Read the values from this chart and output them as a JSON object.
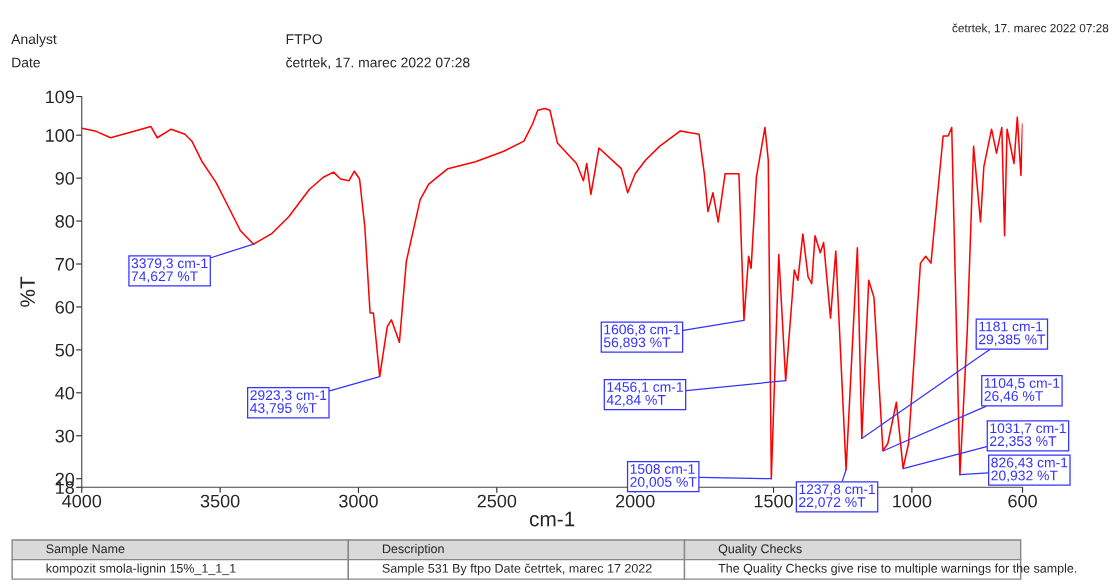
{
  "chart_data": {
    "type": "line",
    "xlabel": "cm-1",
    "ylabel": "%T",
    "xlim": [
      4000,
      600
    ],
    "xticks": [
      4000,
      3500,
      3000,
      2500,
      2000,
      1500,
      1000,
      600
    ],
    "ylim": [
      18,
      109
    ],
    "yticks": [
      18,
      20,
      30,
      40,
      50,
      60,
      70,
      80,
      90,
      100,
      109
    ],
    "grid": false,
    "legend": false,
    "marker": "none",
    "line_style": "solid",
    "series": [
      {
        "color": "#ff0000",
        "x": [
          4000,
          3952,
          3896,
          3827,
          3750,
          3727,
          3677,
          3627,
          3602,
          3565,
          3515,
          3477,
          3427,
          3379.3,
          3315,
          3252,
          3177,
          3127,
          3090,
          3065,
          3034,
          3015,
          2996,
          2977,
          2958,
          2946,
          2923.3,
          2896,
          2881,
          2852,
          2827,
          2777,
          2746,
          2677,
          2577,
          2477,
          2402,
          2371,
          2352,
          2327,
          2308,
          2281,
          2212,
          2187,
          2175,
          2160,
          2131,
          2050,
          2027,
          2000,
          1962,
          1912,
          1837,
          1769,
          1750,
          1737,
          1719,
          1700,
          1675,
          1625,
          1606.8,
          1590,
          1581,
          1562,
          1531,
          1519,
          1508,
          1481,
          1456.1,
          1425,
          1412,
          1394,
          1375,
          1362,
          1350,
          1331,
          1319,
          1294,
          1275,
          1237.8,
          1197,
          1181,
          1156,
          1137,
          1104.5,
          1087,
          1056,
          1031.7,
          1012,
          969,
          950,
          931,
          887,
          869,
          856,
          826.43,
          800,
          777,
          752,
          740,
          712,
          694,
          675,
          665,
          656,
          631,
          619,
          606,
          600
        ],
        "values": [
          101.6,
          101,
          99.4,
          100.6,
          102,
          99.4,
          101.4,
          100.2,
          98.6,
          93.8,
          89,
          84.2,
          77.8,
          74.6,
          77,
          81,
          87.4,
          90.2,
          91.4,
          89.8,
          89.4,
          91.6,
          89.8,
          78.6,
          58.6,
          58.6,
          43.8,
          55.4,
          57,
          51.8,
          70.6,
          85,
          88.6,
          92.2,
          93.8,
          96.2,
          98.6,
          102.6,
          105.8,
          106.2,
          105.8,
          98.2,
          93.4,
          89.4,
          93.4,
          86.2,
          97,
          92.2,
          86.6,
          91,
          94.2,
          97.4,
          101,
          100.2,
          91,
          82.2,
          86.6,
          79.8,
          91,
          91,
          56.9,
          71.8,
          69,
          90.2,
          101.8,
          94.2,
          20,
          72.2,
          42.8,
          68.6,
          66.2,
          77,
          67,
          65.4,
          76.6,
          72.6,
          75,
          57.4,
          73,
          22.1,
          73.8,
          29.4,
          66.2,
          62.2,
          26.5,
          28.2,
          37.8,
          22.4,
          28.2,
          70.2,
          71.8,
          70.2,
          99.8,
          99.8,
          101.8,
          20.9,
          54.2,
          97.4,
          79.8,
          92.6,
          101.4,
          95.8,
          101.8,
          76.6,
          101.4,
          93.4,
          104.2,
          90.6,
          102.6
        ]
      }
    ],
    "annotations": [
      "Analyst",
      "FTPO",
      "Date",
      "četrtek, 17. marec 2022 07:28",
      "četrtek, 17. marec 2022 07:28",
      "Sample Name",
      "Description",
      "Quality Checks",
      "kompozit smola-lignin 15%_1_1_1",
      "Sample 531 By ftpo Date četrtek, marec 17 2022",
      "The Quality Checks give rise to multiple warnings for the sample.",
      {
        "text": "3379,3 cm-1\n74,627 %T",
        "x": 3379.3,
        "y": 74.627
      },
      {
        "text": "2923,3 cm-1\n43,795 %T",
        "x": 2923.3,
        "y": 43.795
      },
      {
        "text": "1606,8 cm-1\n56,893 %T",
        "x": 1606.8,
        "y": 56.893
      },
      {
        "text": "1456,1 cm-1\n42,84 %T",
        "x": 1456.1,
        "y": 42.84
      },
      {
        "text": "1508 cm-1\n20,005 %T",
        "x": 1508,
        "y": 20.005
      },
      {
        "text": "1237,8 cm-1\n22,072 %T",
        "x": 1237.8,
        "y": 22.072
      },
      {
        "text": "1181 cm-1\n29,385 %T",
        "x": 1181,
        "y": 29.385
      },
      {
        "text": "1104,5 cm-1\n26,46 %T",
        "x": 1104.5,
        "y": 26.46
      },
      {
        "text": "1031,7 cm-1\n22,353 %T",
        "x": 1031.7,
        "y": 22.353
      },
      {
        "text": "826,43 cm-1\n20,932 %T",
        "x": 826.43,
        "y": 20.932
      }
    ]
  }
}
